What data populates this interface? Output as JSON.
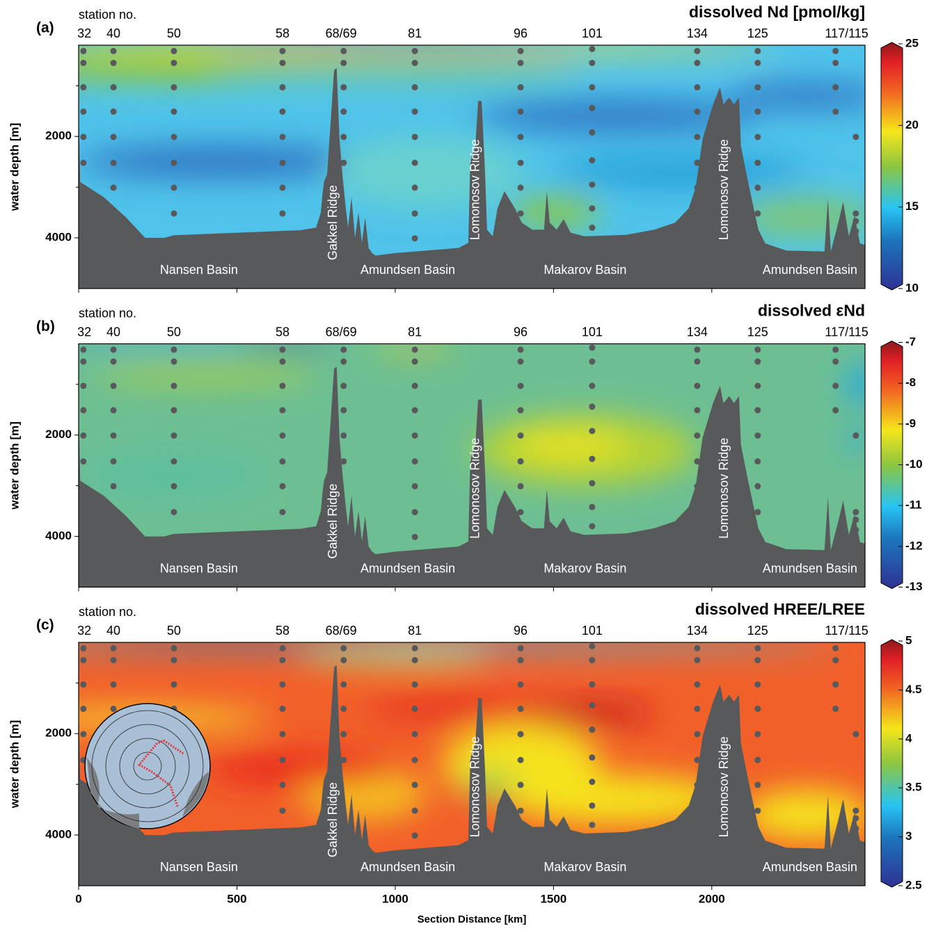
{
  "chart_data": [
    {
      "type": "section",
      "letter": "(a)",
      "title": "dissolved Nd [pmol/kg]",
      "clim": [
        10,
        25
      ],
      "cticks": [
        10,
        15,
        20,
        25
      ]
    },
    {
      "type": "section",
      "letter": "(b)",
      "title": "dissolved  εNd",
      "clim": [
        -13,
        -7
      ],
      "cticks": [
        -13,
        -12,
        -11,
        -10,
        -9,
        -8,
        -7
      ]
    },
    {
      "type": "section",
      "letter": "(c)",
      "title": "dissolved HREE/LREE",
      "clim": [
        2.5,
        5
      ],
      "cticks": [
        2.5,
        3,
        3.5,
        4,
        4.5,
        5
      ]
    }
  ],
  "shared": {
    "station_title": "station no.",
    "ylabel": "water depth [m]",
    "xlabel": "Section Distance [km]",
    "xlim": [
      0,
      2484
    ],
    "xticks": [
      0,
      500,
      1000,
      1500,
      2000
    ],
    "ylim": [
      200,
      5000
    ],
    "yticks": [
      2000,
      4000
    ],
    "yminor": [
      1000,
      3000
    ],
    "stations": [
      {
        "label": "32",
        "x": 18
      },
      {
        "label": "40",
        "x": 110
      },
      {
        "label": "50",
        "x": 301
      },
      {
        "label": "58",
        "x": 644
      },
      {
        "label": "68/69",
        "x": 829
      },
      {
        "label": "81",
        "x": 1062
      },
      {
        "label": "96",
        "x": 1396
      },
      {
        "label": "101",
        "x": 1622
      },
      {
        "label": "134",
        "x": 1954
      },
      {
        "label": "125",
        "x": 2145
      },
      {
        "label": "117/115",
        "x": 2426
      }
    ],
    "basins": [
      "Nansen Basin",
      "Amundsen Basin",
      "Makarov Basin",
      "Amundsen Basin"
    ],
    "ridges": [
      "Gakkel Ridge",
      "Lomonosov  Ridge",
      "Lomonosov  Ridge"
    ],
    "samples": [
      {
        "x": 15,
        "depths": [
          315,
          550,
          1030,
          1510,
          2010,
          2520
        ]
      },
      {
        "x": 110,
        "depths": [
          315,
          550,
          1030,
          1510,
          2010,
          2520,
          3010,
          3520
        ]
      },
      {
        "x": 301,
        "depths": [
          315,
          550,
          1030,
          1510,
          2010,
          2520,
          3010,
          3520
        ]
      },
      {
        "x": 644,
        "depths": [
          315,
          550,
          1030,
          1510,
          2010,
          2520,
          3010,
          3520
        ]
      },
      {
        "x": 837,
        "depths": [
          315,
          550,
          1030,
          1510,
          2010,
          2520
        ]
      },
      {
        "x": 1062,
        "depths": [
          315,
          550,
          1030,
          1510,
          2010,
          2520,
          3010,
          3520,
          4010
        ]
      },
      {
        "x": 1396,
        "depths": [
          315,
          550,
          1030,
          1510,
          2010,
          2520,
          3010,
          3520
        ]
      },
      {
        "x": 1622,
        "depths": [
          275,
          550,
          1030,
          1440,
          1920,
          2470,
          2950,
          3420,
          3800
        ]
      },
      {
        "x": 1954,
        "depths": [
          315,
          550,
          1030,
          1510,
          2010,
          2520,
          3010
        ]
      },
      {
        "x": 2145,
        "depths": [
          315,
          550,
          1030,
          1510,
          2010,
          2520,
          3010,
          3520
        ]
      },
      {
        "x": 2391,
        "depths": [
          315,
          550,
          1030,
          1510
        ]
      },
      {
        "x": 2455,
        "depths": [
          2010,
          3520,
          3670,
          3870
        ]
      }
    ],
    "bathymetry": {
      "x": [
        0,
        5,
        30,
        80,
        150,
        210,
        270,
        300,
        500,
        700,
        750,
        765,
        770,
        775,
        785,
        807,
        815,
        824,
        833,
        844,
        851,
        862,
        873,
        884,
        895,
        905,
        916,
        927,
        938,
        1000,
        1100,
        1200,
        1231,
        1237,
        1253,
        1262,
        1273,
        1284,
        1290,
        1308,
        1323,
        1345,
        1378,
        1400,
        1433,
        1470,
        1479,
        1488,
        1510,
        1532,
        1554,
        1598,
        1730,
        1818,
        1884,
        1927,
        1949,
        1971,
        2004,
        2026,
        2037,
        2055,
        2070,
        2086,
        2092,
        2114,
        2147,
        2169,
        2235,
        2356,
        2367,
        2376,
        2400,
        2415,
        2433,
        2451,
        2468,
        2484
      ],
      "depths": [
        1500,
        2900,
        3000,
        3200,
        3600,
        4000,
        4000,
        3950,
        3900,
        3850,
        3800,
        3500,
        3150,
        2900,
        2740,
        690,
        650,
        2050,
        2740,
        3420,
        3800,
        3200,
        4000,
        3500,
        4100,
        3600,
        4200,
        4300,
        4350,
        4300,
        4250,
        4200,
        4100,
        2500,
        2190,
        1300,
        1300,
        2740,
        3840,
        3970,
        3420,
        3080,
        3420,
        3700,
        3840,
        3840,
        3080,
        3700,
        3840,
        3630,
        3900,
        3970,
        3940,
        3840,
        3700,
        3420,
        3010,
        2050,
        1370,
        1030,
        1370,
        1230,
        1370,
        1230,
        2190,
        2880,
        3840,
        4110,
        4250,
        4270,
        3220,
        4270,
        3690,
        3290,
        3970,
        3560,
        4110,
        4140
      ]
    }
  }
}
